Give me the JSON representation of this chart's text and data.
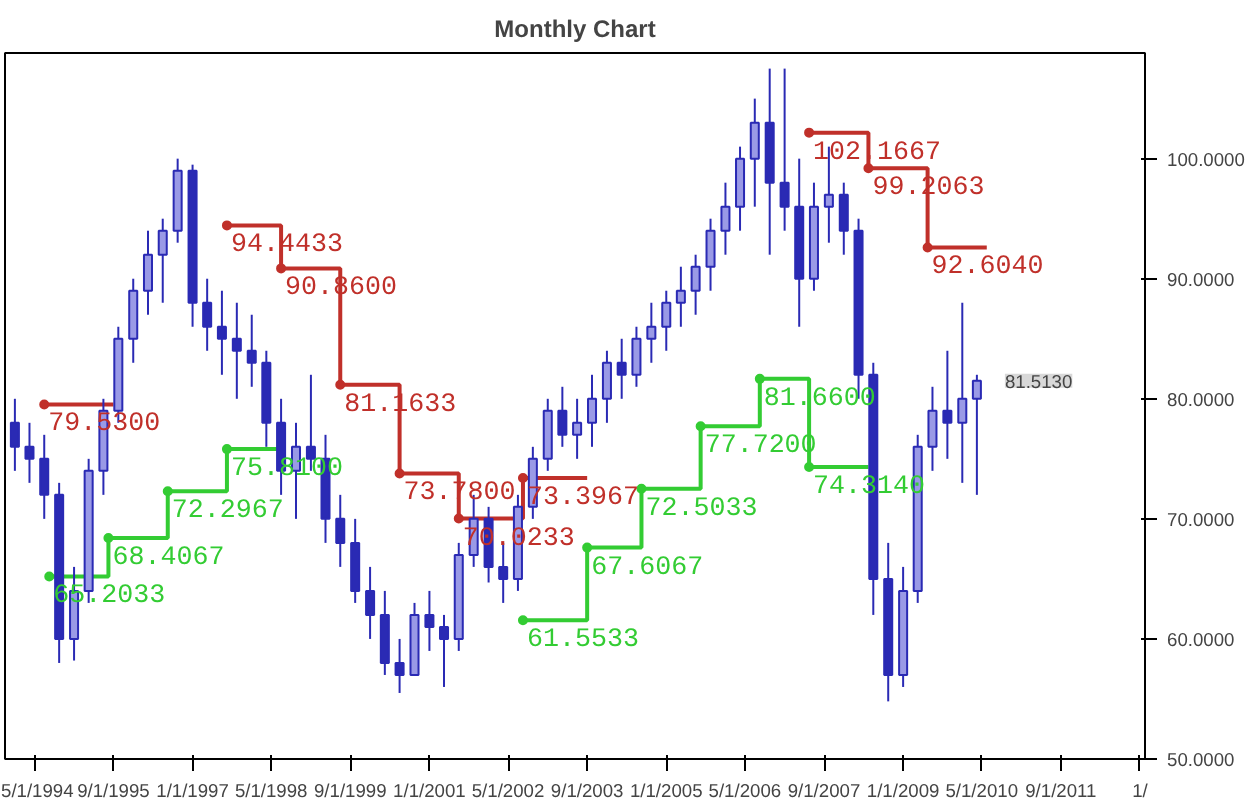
{
  "chart_data": {
    "type": "candlestick",
    "title": "Monthly Chart",
    "x": [
      "1994-01",
      "1994-04",
      "1994-07",
      "1994-10",
      "1995-01",
      "1995-04",
      "1995-07",
      "1995-10",
      "1996-01",
      "1996-04",
      "1996-07",
      "1996-10",
      "1997-01",
      "1997-04",
      "1997-07",
      "1997-10",
      "1998-01",
      "1998-04",
      "1998-07",
      "1998-10",
      "1999-01",
      "1999-04",
      "1999-07",
      "1999-10",
      "2000-01",
      "2000-04",
      "2000-07",
      "2000-10",
      "2001-01",
      "2001-04",
      "2001-07",
      "2001-10",
      "2002-01",
      "2002-04",
      "2002-07",
      "2002-10",
      "2003-01",
      "2003-04",
      "2003-07",
      "2003-10",
      "2004-01",
      "2004-04",
      "2004-07",
      "2004-10",
      "2005-01",
      "2005-04",
      "2005-07",
      "2005-10",
      "2006-01",
      "2006-04",
      "2006-07",
      "2006-10",
      "2007-01",
      "2007-04",
      "2007-07",
      "2007-10",
      "2008-01",
      "2008-04",
      "2008-07",
      "2008-10",
      "2009-01",
      "2009-04",
      "2009-07",
      "2009-10",
      "2010-01",
      "2010-04"
    ],
    "ohlc": [
      [
        78,
        80,
        74,
        76
      ],
      [
        76,
        78,
        73,
        75
      ],
      [
        75,
        77,
        70,
        72
      ],
      [
        72,
        73,
        58,
        60
      ],
      [
        60,
        66,
        58.2,
        64
      ],
      [
        64,
        75,
        63,
        74
      ],
      [
        74,
        80,
        72,
        79
      ],
      [
        79,
        86,
        78,
        85
      ],
      [
        85,
        90,
        83,
        89
      ],
      [
        89,
        94,
        87,
        92
      ],
      [
        92,
        95,
        88,
        94
      ],
      [
        94,
        100,
        93,
        99
      ],
      [
        99,
        99.5,
        86,
        88
      ],
      [
        88,
        90,
        84,
        86
      ],
      [
        86,
        89,
        82,
        85
      ],
      [
        85,
        88,
        80,
        84
      ],
      [
        84,
        87,
        81,
        83
      ],
      [
        83,
        84,
        76,
        78
      ],
      [
        78,
        80,
        72,
        74
      ],
      [
        74,
        78,
        70,
        76
      ],
      [
        76,
        82,
        74,
        75
      ],
      [
        75,
        77,
        68,
        70
      ],
      [
        70,
        72,
        66,
        68
      ],
      [
        68,
        70,
        63,
        64
      ],
      [
        64,
        66,
        60,
        62
      ],
      [
        62,
        64,
        57,
        58
      ],
      [
        58,
        60,
        55.5,
        57
      ],
      [
        57,
        63,
        57,
        62
      ],
      [
        62,
        64,
        59,
        61
      ],
      [
        61,
        62,
        56,
        60
      ],
      [
        60,
        68,
        59,
        67
      ],
      [
        67,
        72,
        66,
        70
      ],
      [
        70,
        71,
        64.7,
        66
      ],
      [
        66,
        68,
        63,
        65
      ],
      [
        65,
        72,
        64,
        71
      ],
      [
        71,
        76,
        70,
        75
      ],
      [
        75,
        80,
        74,
        79
      ],
      [
        79,
        81,
        76,
        77
      ],
      [
        77,
        80,
        75,
        78
      ],
      [
        78,
        82,
        76,
        80
      ],
      [
        80,
        84,
        78,
        83
      ],
      [
        83,
        85,
        80,
        82
      ],
      [
        82,
        86,
        81,
        85
      ],
      [
        85,
        88,
        83,
        86
      ],
      [
        86,
        89,
        84,
        88
      ],
      [
        88,
        91,
        86,
        89
      ],
      [
        89,
        92,
        87,
        91
      ],
      [
        91,
        95,
        89,
        94
      ],
      [
        94,
        98,
        92,
        96
      ],
      [
        96,
        101,
        94,
        100
      ],
      [
        100,
        105,
        96,
        103
      ],
      [
        103,
        107.5,
        92,
        98
      ],
      [
        98,
        107.5,
        94,
        96
      ],
      [
        96,
        100,
        86,
        90
      ],
      [
        90,
        98,
        89,
        96
      ],
      [
        96,
        101,
        93,
        97
      ],
      [
        97,
        98,
        92,
        94
      ],
      [
        94,
        95,
        80,
        82
      ],
      [
        82,
        83,
        62,
        65
      ],
      [
        65,
        68,
        54.8,
        57
      ],
      [
        57,
        66,
        56,
        64
      ],
      [
        64,
        77,
        63,
        76
      ],
      [
        76,
        81,
        74,
        79
      ],
      [
        79,
        84,
        75,
        78
      ],
      [
        78,
        88,
        73,
        80
      ],
      [
        80,
        82,
        72,
        81.513
      ]
    ],
    "color": "#2a2ab4",
    "series": [
      {
        "type": "step",
        "marker": "circle",
        "color": "#c0302a",
        "x": [
          "1994-07",
          "1995-09"
        ],
        "values": [
          79.53,
          79.53
        ],
        "value_labels": [
          "79.5300",
          null
        ]
      },
      {
        "type": "step",
        "marker": "circle",
        "color": "#c0302a",
        "x": [
          "1997-08",
          "1998-07",
          "1999-07",
          "2000-07",
          "2001-07",
          "2002-08",
          "2003-09"
        ],
        "values": [
          94.4433,
          90.86,
          81.1633,
          73.78,
          70.0233,
          73.3967,
          73.3967
        ],
        "value_labels": [
          "94.4433",
          "90.8600",
          "81.1633",
          "73.7800",
          "70.0233",
          "73.3967",
          null
        ]
      },
      {
        "type": "step",
        "marker": "circle",
        "color": "#c0302a",
        "x": [
          "2007-06",
          "2008-06",
          "2009-06",
          "2010-06"
        ],
        "values": [
          102.1667,
          99.2063,
          92.604,
          92.604
        ],
        "value_labels": [
          "102.1667",
          "99.2063",
          "92.6040",
          null
        ]
      },
      {
        "type": "step",
        "marker": "circle",
        "color": "#33cc33",
        "x": [
          "1994-08",
          "1995-08",
          "1996-08",
          "1997-08",
          "1998-07"
        ],
        "values": [
          65.2033,
          68.4067,
          72.2967,
          75.81,
          75.81
        ],
        "value_labels": [
          "65.2033",
          "68.4067",
          "72.2967",
          "75.8100",
          null
        ]
      },
      {
        "type": "step",
        "marker": "circle",
        "color": "#33cc33",
        "x": [
          "2002-08",
          "2003-09",
          "2004-08",
          "2005-08",
          "2006-08",
          "2007-06",
          "2008-06"
        ],
        "values": [
          61.5533,
          67.6067,
          72.5033,
          77.72,
          81.66,
          74.314,
          74.314
        ],
        "value_labels": [
          "61.5533",
          "67.6067",
          "72.5033",
          "77.7200",
          "81.6600",
          "74.3140",
          null
        ]
      }
    ],
    "annotations": [
      {
        "text": "81.5130",
        "x": "2010-04",
        "y": 81.513
      }
    ],
    "xlim": [
      "1993-11",
      "2013-02"
    ],
    "xticks": [
      {
        "value": "1994-05-01",
        "label": "5/1/1994"
      },
      {
        "value": "1995-09-01",
        "label": "9/1/1995"
      },
      {
        "value": "1997-01-01",
        "label": "1/1/1997"
      },
      {
        "value": "1998-05-01",
        "label": "5/1/1998"
      },
      {
        "value": "1999-09-01",
        "label": "9/1/1999"
      },
      {
        "value": "2001-01-01",
        "label": "1/1/2001"
      },
      {
        "value": "2002-05-01",
        "label": "5/1/2002"
      },
      {
        "value": "2003-09-01",
        "label": "9/1/2003"
      },
      {
        "value": "2005-01-01",
        "label": "1/1/2005"
      },
      {
        "value": "2006-05-01",
        "label": "5/1/2006"
      },
      {
        "value": "2007-09-01",
        "label": "9/1/2007"
      },
      {
        "value": "2009-01-01",
        "label": "1/1/2009"
      },
      {
        "value": "2010-05-01",
        "label": "5/1/2010"
      },
      {
        "value": "2011-09-01",
        "label": "9/1/2011"
      },
      {
        "value": "2013-01-01",
        "label": "1/"
      }
    ],
    "ylim": [
      50,
      108.8
    ],
    "yticks": [
      {
        "value": 50,
        "label": "50.0000"
      },
      {
        "value": 60,
        "label": "60.0000"
      },
      {
        "value": 70,
        "label": "70.0000"
      },
      {
        "value": 80,
        "label": "80.0000"
      },
      {
        "value": 90,
        "label": "90.0000"
      },
      {
        "value": 100,
        "label": "100.0000"
      }
    ],
    "grid": false
  }
}
